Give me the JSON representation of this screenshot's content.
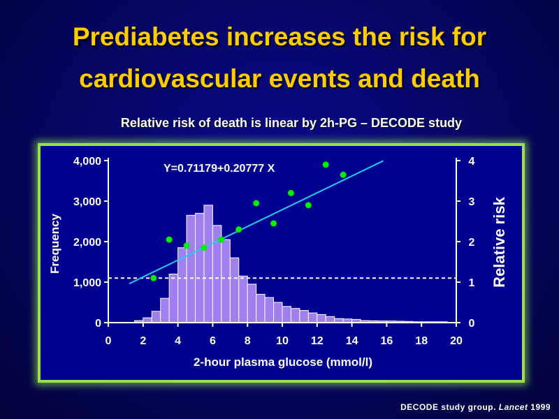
{
  "slide": {
    "title_line1": "Prediabetes increases the risk for",
    "title_line2": "cardiovascular events and death",
    "subtitle": "Relative risk of death is linear by 2h-PG – DECODE study",
    "citation_text": "DECODE study group. ",
    "citation_journal": "Lancet",
    "citation_year": " 1999"
  },
  "colors": {
    "bar_fill": "#a080f0",
    "bar_stroke": "#ffffff",
    "points": "#00ee00",
    "regression_line": "#22ccee",
    "reference_line": "#ffffff",
    "axis": "#ffffff"
  },
  "chart_data": {
    "type": "bar",
    "title": "",
    "equation": "Y=0.71179+0.20777 X",
    "xlabel": "2-hour plasma glucose (mmol/l)",
    "ylabel_left": "Frequency",
    "ylabel_right": "Relative risk",
    "xlim": [
      0,
      20
    ],
    "ylim_left": [
      0,
      4000
    ],
    "ylim_right": [
      0,
      4
    ],
    "x_ticks": [
      "0",
      "2",
      "4",
      "6",
      "8",
      "10",
      "12",
      "14",
      "16",
      "18",
      "20"
    ],
    "y_ticks_left": [
      "0",
      "1,000",
      "2,000",
      "3,000",
      "4,000"
    ],
    "y_ticks_right": [
      "0",
      "1",
      "2",
      "3",
      "4"
    ],
    "histogram": {
      "bin_width": 0.5,
      "bins_start": [
        1.5,
        2.0,
        2.5,
        3.0,
        3.5,
        4.0,
        4.5,
        5.0,
        5.5,
        6.0,
        6.5,
        7.0,
        7.5,
        8.0,
        8.5,
        9.0,
        9.5,
        10.0,
        10.5,
        11.0,
        11.5,
        12.0,
        12.5,
        13.0,
        13.5,
        14.0,
        14.5,
        15.0,
        15.5,
        16.0,
        16.5,
        17.0,
        17.5,
        18.0,
        18.5,
        19.0
      ],
      "frequencies": [
        50,
        120,
        280,
        600,
        1200,
        1850,
        2650,
        2700,
        2900,
        2400,
        2050,
        1600,
        1150,
        950,
        700,
        620,
        500,
        400,
        350,
        300,
        240,
        200,
        150,
        100,
        90,
        80,
        50,
        45,
        40,
        40,
        35,
        30,
        20,
        20,
        20,
        20
      ]
    },
    "relative_risk_points": {
      "x": [
        2.6,
        3.5,
        4.5,
        5.5,
        6.5,
        7.5,
        8.5,
        9.5,
        10.5,
        11.5,
        12.5,
        13.5
      ],
      "y": [
        1.1,
        2.05,
        1.9,
        1.85,
        2.05,
        2.3,
        2.95,
        2.45,
        3.2,
        2.9,
        3.9,
        3.65
      ]
    },
    "regression": {
      "intercept": 0.71179,
      "slope": 0.20777,
      "x_range": [
        1.2,
        15.8
      ]
    },
    "reference_line_rr": 1.1
  }
}
